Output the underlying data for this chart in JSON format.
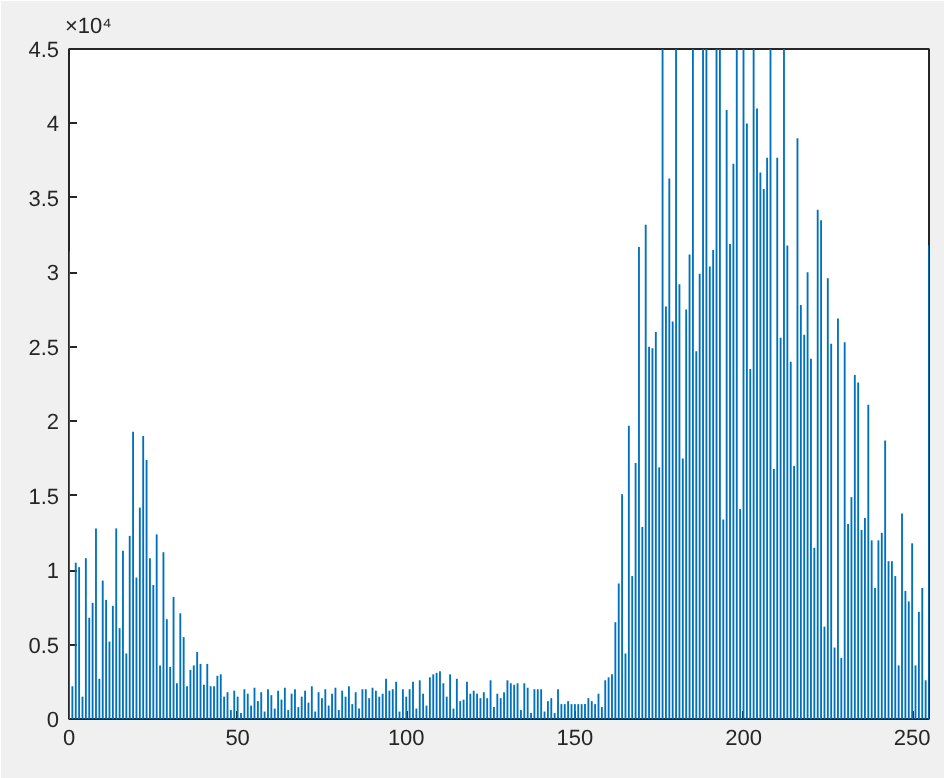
{
  "chart_data": {
    "type": "bar",
    "color": "#0072bd",
    "annotations": [
      "×10⁴"
    ],
    "xlim": [
      0,
      255
    ],
    "xticks": [
      0,
      50,
      100,
      150,
      200,
      250
    ],
    "ylim": [
      0,
      4.5
    ],
    "yticks": [
      0,
      0.5,
      1,
      1.5,
      2,
      2.5,
      3,
      3.5,
      4,
      4.5
    ],
    "grid": false,
    "x": [
      0,
      1,
      2,
      3,
      4,
      5,
      6,
      7,
      8,
      9,
      10,
      11,
      12,
      13,
      14,
      15,
      16,
      17,
      18,
      19,
      20,
      21,
      22,
      23,
      24,
      25,
      26,
      27,
      28,
      29,
      30,
      31,
      32,
      33,
      34,
      35,
      36,
      37,
      38,
      39,
      40,
      41,
      42,
      43,
      44,
      45,
      46,
      47,
      48,
      49,
      50,
      51,
      52,
      53,
      54,
      55,
      56,
      57,
      58,
      59,
      60,
      61,
      62,
      63,
      64,
      65,
      66,
      67,
      68,
      69,
      70,
      71,
      72,
      73,
      74,
      75,
      76,
      77,
      78,
      79,
      80,
      81,
      82,
      83,
      84,
      85,
      86,
      87,
      88,
      89,
      90,
      91,
      92,
      93,
      94,
      95,
      96,
      97,
      98,
      99,
      100,
      101,
      102,
      103,
      104,
      105,
      106,
      107,
      108,
      109,
      110,
      111,
      112,
      113,
      114,
      115,
      116,
      117,
      118,
      119,
      120,
      121,
      122,
      123,
      124,
      125,
      126,
      127,
      128,
      129,
      130,
      131,
      132,
      133,
      134,
      135,
      136,
      137,
      138,
      139,
      140,
      141,
      142,
      143,
      144,
      145,
      146,
      147,
      148,
      149,
      150,
      151,
      152,
      153,
      154,
      155,
      156,
      157,
      158,
      159,
      160,
      161,
      162,
      163,
      164,
      165,
      166,
      167,
      168,
      169,
      170,
      171,
      172,
      173,
      174,
      175,
      176,
      177,
      178,
      179,
      180,
      181,
      182,
      183,
      184,
      185,
      186,
      187,
      188,
      189,
      190,
      191,
      192,
      193,
      194,
      195,
      196,
      197,
      198,
      199,
      200,
      201,
      202,
      203,
      204,
      205,
      206,
      207,
      208,
      209,
      210,
      211,
      212,
      213,
      214,
      215,
      216,
      217,
      218,
      219,
      220,
      221,
      222,
      223,
      224,
      225,
      226,
      227,
      228,
      229,
      230,
      231,
      232,
      233,
      234,
      235,
      236,
      237,
      238,
      239,
      240,
      241,
      242,
      243,
      244,
      245,
      246,
      247,
      248,
      249,
      250,
      251,
      252,
      253,
      254,
      255
    ],
    "values": [
      3.14,
      0.22,
      1.05,
      1.02,
      0.15,
      1.08,
      0.68,
      0.78,
      1.28,
      0.27,
      0.93,
      0.8,
      0.52,
      0.76,
      1.28,
      0.61,
      1.13,
      0.44,
      1.23,
      1.93,
      0.95,
      1.42,
      1.9,
      1.74,
      1.08,
      0.9,
      1.24,
      0.36,
      1.12,
      0.67,
      0.35,
      0.82,
      0.24,
      0.71,
      0.55,
      0.22,
      0.33,
      0.36,
      0.45,
      0.37,
      0.23,
      0.37,
      0.22,
      0.22,
      0.29,
      0.3,
      0.15,
      0.18,
      0.06,
      0.19,
      0.15,
      0.04,
      0.2,
      0.17,
      0.09,
      0.21,
      0.12,
      0.18,
      0.05,
      0.2,
      0.16,
      0.07,
      0.19,
      0.13,
      0.21,
      0.06,
      0.17,
      0.2,
      0.08,
      0.15,
      0.19,
      0.11,
      0.22,
      0.05,
      0.18,
      0.14,
      0.2,
      0.09,
      0.17,
      0.21,
      0.06,
      0.19,
      0.15,
      0.22,
      0.1,
      0.18,
      0.07,
      0.2,
      0.2,
      0.14,
      0.21,
      0.19,
      0.15,
      0.17,
      0.27,
      0.19,
      0.2,
      0.25,
      0.05,
      0.2,
      0.15,
      0.2,
      0.25,
      0.07,
      0.26,
      0.17,
      0.09,
      0.28,
      0.3,
      0.31,
      0.32,
      0.24,
      0.15,
      0.3,
      0.07,
      0.27,
      0.12,
      0.13,
      0.25,
      0.17,
      0.19,
      0.17,
      0.14,
      0.18,
      0.14,
      0.26,
      0.08,
      0.17,
      0.14,
      0.18,
      0.26,
      0.24,
      0.23,
      0.24,
      0.06,
      0.24,
      0.21,
      0.04,
      0.2,
      0.2,
      0.2,
      0.05,
      0.12,
      0.14,
      0.04,
      0.2,
      0.1,
      0.1,
      0.12,
      0.1,
      0.1,
      0.1,
      0.1,
      0.1,
      0.14,
      0.12,
      0.1,
      0.17,
      0.08,
      0.26,
      0.28,
      0.3,
      0.65,
      0.91,
      1.51,
      0.44,
      1.97,
      0.96,
      1.72,
      3.17,
      1.29,
      3.32,
      2.5,
      2.49,
      2.6,
      1.69,
      4.5,
      2.77,
      3.63,
      2.67,
      4.5,
      2.92,
      1.75,
      2.75,
      3.12,
      4.5,
      2.47,
      2.99,
      4.5,
      4.5,
      3.04,
      3.15,
      4.5,
      4.5,
      1.34,
      4.09,
      3.19,
      3.73,
      4.5,
      1.41,
      4.5,
      4.0,
      2.35,
      4.5,
      4.1,
      3.67,
      3.56,
      3.77,
      4.5,
      1.68,
      3.77,
      2.56,
      4.5,
      3.18,
      2.4,
      1.7,
      3.9,
      2.78,
      2.58,
      3.0,
      2.42,
      1.15,
      3.42,
      3.35,
      0.62,
      2.96,
      2.52,
      0.48,
      2.69,
      0.41,
      2.53,
      1.31,
      1.49,
      2.31,
      2.26,
      1.27,
      1.35,
      2.11,
      1.2,
      0.88,
      1.2,
      1.25,
      1.87,
      1.06,
      1.06,
      0.96,
      0.36,
      1.38,
      0.86,
      0.79,
      1.18,
      0.36,
      0.72,
      0.88,
      0.26,
      3.18
    ]
  }
}
